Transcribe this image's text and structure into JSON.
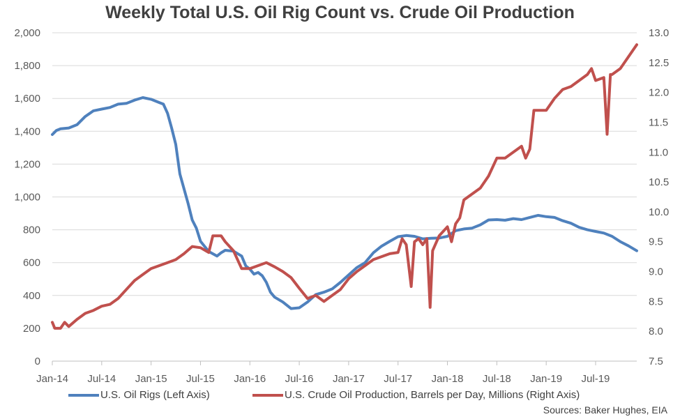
{
  "chart_data": {
    "type": "line",
    "title": "Weekly Total U.S. Oil Rig Count vs. Crude Oil Production",
    "x_tick_labels": [
      "Jan-14",
      "Jul-14",
      "Jan-15",
      "Jul-15",
      "Jan-16",
      "Jul-16",
      "Jan-17",
      "Jul-17",
      "Jan-18",
      "Jul-18",
      "Jan-19",
      "Jul-19"
    ],
    "x_range_months": [
      0,
      71
    ],
    "y_left": {
      "lim": [
        0,
        2000
      ],
      "ticks": [
        "0",
        "200",
        "400",
        "600",
        "800",
        "1,000",
        "1,200",
        "1,400",
        "1,600",
        "1,800",
        "2,000"
      ]
    },
    "y_right": {
      "lim": [
        7.5,
        13.0
      ],
      "ticks": [
        "7.5",
        "8.0",
        "8.5",
        "9.0",
        "9.5",
        "10.0",
        "10.5",
        "11.0",
        "11.5",
        "12.0",
        "12.5",
        "13.0"
      ]
    },
    "grid": true,
    "legend_position": "bottom",
    "series": [
      {
        "name": "U.S. Oil Rigs (Left Axis)",
        "axis": "left",
        "color": "#4f81bd",
        "points": [
          [
            0,
            1380
          ],
          [
            0.5,
            1405
          ],
          [
            1,
            1415
          ],
          [
            2,
            1420
          ],
          [
            3,
            1440
          ],
          [
            4,
            1490
          ],
          [
            5,
            1525
          ],
          [
            6,
            1535
          ],
          [
            7,
            1545
          ],
          [
            8,
            1565
          ],
          [
            9,
            1570
          ],
          [
            10,
            1590
          ],
          [
            11,
            1605
          ],
          [
            12,
            1595
          ],
          [
            13,
            1575
          ],
          [
            13.5,
            1565
          ],
          [
            14,
            1510
          ],
          [
            14.5,
            1420
          ],
          [
            15,
            1320
          ],
          [
            15.5,
            1140
          ],
          [
            16,
            1050
          ],
          [
            16.5,
            960
          ],
          [
            17,
            860
          ],
          [
            17.5,
            810
          ],
          [
            18,
            730
          ],
          [
            19,
            668
          ],
          [
            20,
            640
          ],
          [
            20.5,
            660
          ],
          [
            21,
            675
          ],
          [
            22,
            670
          ],
          [
            23,
            640
          ],
          [
            23.5,
            580
          ],
          [
            24,
            560
          ],
          [
            24.5,
            530
          ],
          [
            25,
            540
          ],
          [
            25.5,
            520
          ],
          [
            26,
            480
          ],
          [
            26.5,
            420
          ],
          [
            27,
            390
          ],
          [
            28,
            360
          ],
          [
            29,
            320
          ],
          [
            30,
            325
          ],
          [
            31,
            360
          ],
          [
            32,
            405
          ],
          [
            33,
            420
          ],
          [
            34,
            440
          ],
          [
            35,
            480
          ],
          [
            36,
            525
          ],
          [
            37,
            570
          ],
          [
            38,
            600
          ],
          [
            39,
            660
          ],
          [
            40,
            700
          ],
          [
            41,
            730
          ],
          [
            42,
            758
          ],
          [
            43,
            765
          ],
          [
            44,
            760
          ],
          [
            45,
            745
          ],
          [
            46,
            748
          ],
          [
            47,
            750
          ],
          [
            48,
            760
          ],
          [
            49,
            795
          ],
          [
            50,
            805
          ],
          [
            51,
            810
          ],
          [
            52,
            830
          ],
          [
            53,
            860
          ],
          [
            54,
            862
          ],
          [
            55,
            858
          ],
          [
            56,
            868
          ],
          [
            57,
            862
          ],
          [
            58,
            875
          ],
          [
            59,
            888
          ],
          [
            60,
            880
          ],
          [
            61,
            875
          ],
          [
            62,
            855
          ],
          [
            63,
            840
          ],
          [
            64,
            815
          ],
          [
            65,
            800
          ],
          [
            66,
            790
          ],
          [
            67,
            780
          ],
          [
            68,
            760
          ],
          [
            69,
            728
          ],
          [
            70,
            702
          ],
          [
            71,
            672
          ]
        ]
      },
      {
        "name": "U.S. Crude Oil Production, Barrels per Day, Millions (Right Axis)",
        "axis": "right",
        "color": "#c0504d",
        "points": [
          [
            0,
            8.15
          ],
          [
            0.3,
            8.05
          ],
          [
            1,
            8.05
          ],
          [
            1.5,
            8.15
          ],
          [
            2,
            8.08
          ],
          [
            3,
            8.2
          ],
          [
            4,
            8.3
          ],
          [
            5,
            8.35
          ],
          [
            6,
            8.42
          ],
          [
            7,
            8.45
          ],
          [
            8,
            8.55
          ],
          [
            9,
            8.7
          ],
          [
            10,
            8.85
          ],
          [
            11,
            8.95
          ],
          [
            12,
            9.05
          ],
          [
            13,
            9.1
          ],
          [
            14,
            9.15
          ],
          [
            15,
            9.2
          ],
          [
            16,
            9.3
          ],
          [
            17,
            9.42
          ],
          [
            18,
            9.4
          ],
          [
            19,
            9.32
          ],
          [
            19.5,
            9.6
          ],
          [
            20,
            9.6
          ],
          [
            20.5,
            9.6
          ],
          [
            21,
            9.5
          ],
          [
            22,
            9.35
          ],
          [
            23,
            9.05
          ],
          [
            24,
            9.05
          ],
          [
            25,
            9.1
          ],
          [
            26,
            9.15
          ],
          [
            27,
            9.08
          ],
          [
            28,
            9.0
          ],
          [
            29,
            8.9
          ],
          [
            30,
            8.72
          ],
          [
            31,
            8.55
          ],
          [
            32,
            8.6
          ],
          [
            33,
            8.5
          ],
          [
            34,
            8.6
          ],
          [
            35,
            8.7
          ],
          [
            36,
            8.88
          ],
          [
            37,
            9.0
          ],
          [
            38,
            9.1
          ],
          [
            39,
            9.2
          ],
          [
            40,
            9.25
          ],
          [
            41,
            9.3
          ],
          [
            42,
            9.32
          ],
          [
            42.5,
            9.55
          ],
          [
            43,
            9.45
          ],
          [
            43.6,
            8.75
          ],
          [
            44,
            9.5
          ],
          [
            44.5,
            9.55
          ],
          [
            45,
            9.45
          ],
          [
            45.5,
            9.55
          ],
          [
            45.9,
            8.4
          ],
          [
            46.2,
            9.35
          ],
          [
            47,
            9.6
          ],
          [
            48,
            9.75
          ],
          [
            48.5,
            9.5
          ],
          [
            49,
            9.8
          ],
          [
            49.5,
            9.9
          ],
          [
            50,
            10.2
          ],
          [
            51,
            10.3
          ],
          [
            52,
            10.4
          ],
          [
            53,
            10.6
          ],
          [
            54,
            10.9
          ],
          [
            55,
            10.9
          ],
          [
            56,
            11.0
          ],
          [
            57,
            11.1
          ],
          [
            57.5,
            10.9
          ],
          [
            58,
            11.05
          ],
          [
            58.5,
            11.7
          ],
          [
            59,
            11.7
          ],
          [
            60,
            11.7
          ],
          [
            61,
            11.9
          ],
          [
            62,
            12.05
          ],
          [
            63,
            12.1
          ],
          [
            64,
            12.2
          ],
          [
            65,
            12.3
          ],
          [
            65.5,
            12.4
          ],
          [
            66,
            12.2
          ],
          [
            67,
            12.25
          ],
          [
            67.4,
            11.3
          ],
          [
            67.8,
            12.3
          ],
          [
            68,
            12.3
          ],
          [
            69,
            12.4
          ],
          [
            70,
            12.6
          ],
          [
            71,
            12.8
          ]
        ]
      }
    ]
  },
  "source_note": "Sources: Baker Hughes, EIA"
}
